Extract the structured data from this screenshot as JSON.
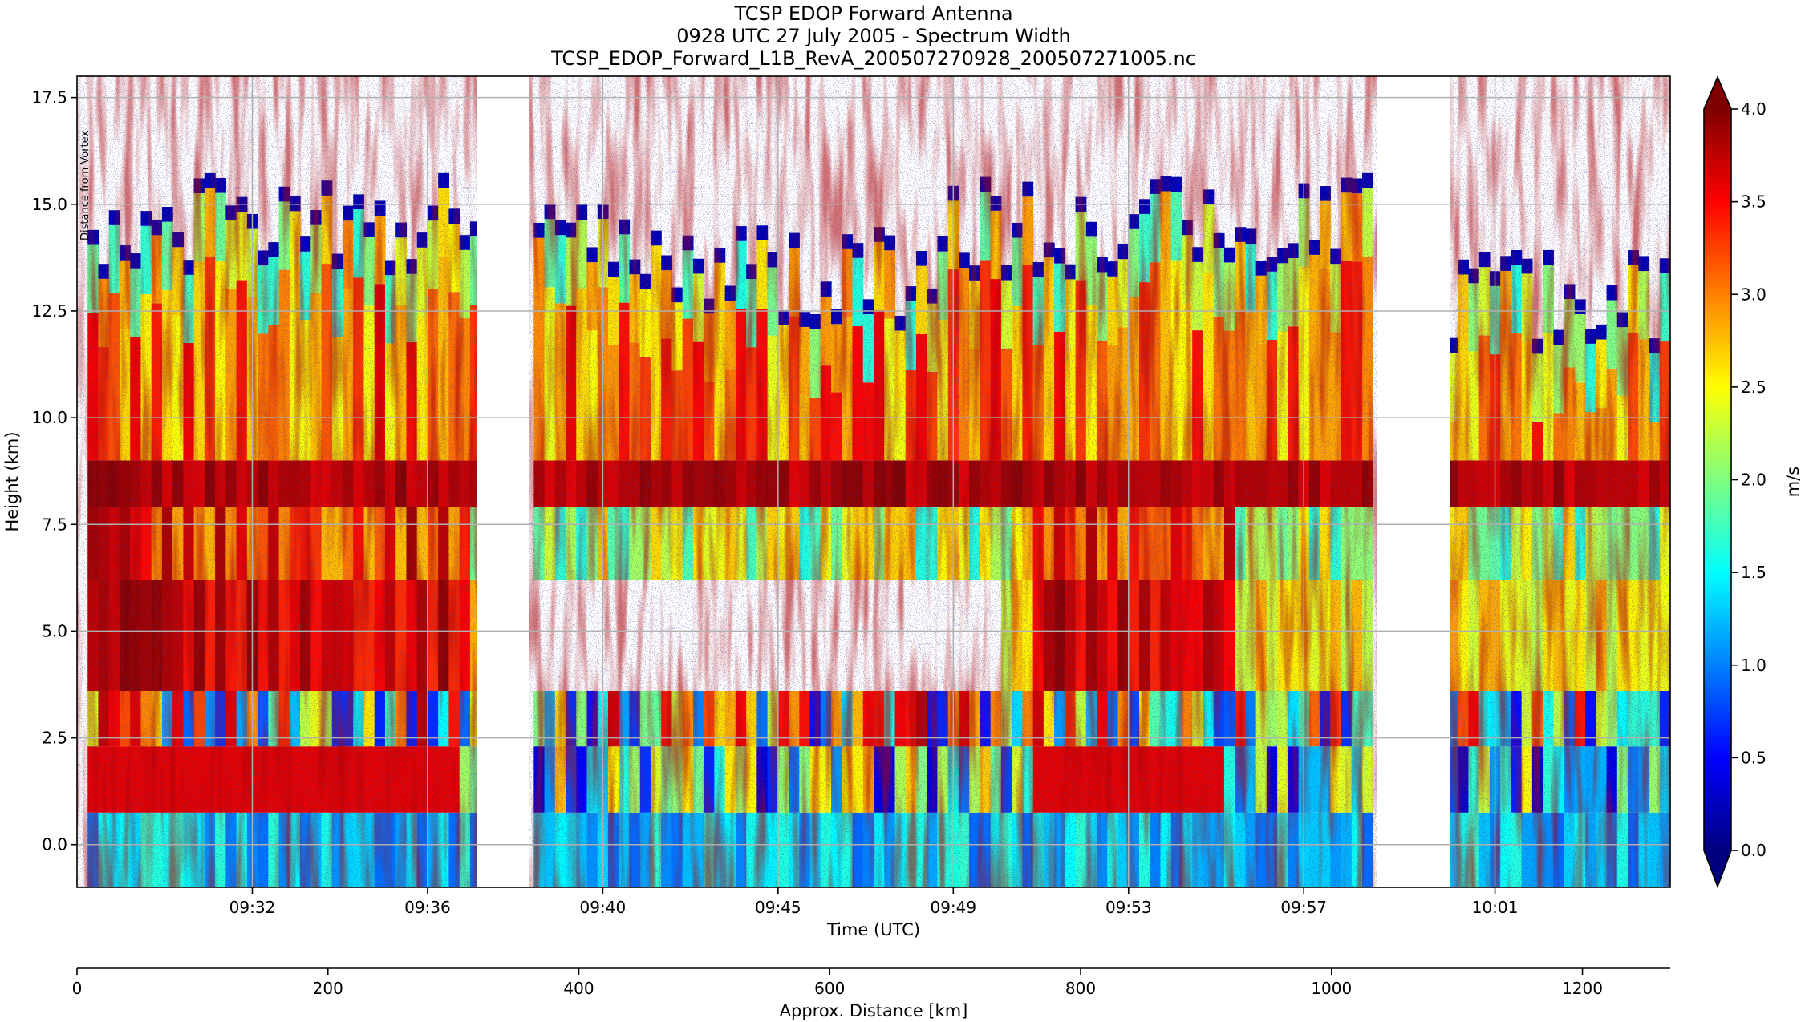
{
  "chart_data": {
    "type": "heatmap",
    "title": [
      "TCSP EDOP Forward Antenna",
      "0928 UTC 27 July 2005 - Spectrum Width",
      "TCSP_EDOP_Forward_L1B_RevA_200507270928_200507271005.nc"
    ],
    "xlabel": "Time (UTC)",
    "ylabel": "Height (km)",
    "x_ticks": [
      "09:32",
      "09:36",
      "09:40",
      "09:45",
      "09:49",
      "09:53",
      "09:57",
      "10:01"
    ],
    "x_tick_pos": [
      0.11,
      0.22,
      0.33,
      0.44,
      0.55,
      0.66,
      0.77,
      0.89
    ],
    "x_range": [
      "09:28",
      "10:05"
    ],
    "y_ticks": [
      0.0,
      2.5,
      5.0,
      7.5,
      10.0,
      12.5,
      15.0,
      17.5
    ],
    "ylim": [
      -1.0,
      18.0
    ],
    "grid": true,
    "annotation": "Distance from Vortex",
    "data_gaps": [
      [
        0.251,
        0.284
      ],
      [
        0.816,
        0.862
      ]
    ],
    "colorbar": {
      "label": "m/s",
      "ticks": [
        0.0,
        0.5,
        1.0,
        1.5,
        2.0,
        2.5,
        3.0,
        3.5,
        4.0
      ],
      "range": [
        0.0,
        4.0
      ],
      "extend": "both",
      "colormap": "jet",
      "colors": [
        "#00007f",
        "#0000ff",
        "#0080ff",
        "#00ffff",
        "#80ff80",
        "#ffff00",
        "#ff8000",
        "#ff0000",
        "#7f0000"
      ]
    },
    "distance_axis": {
      "label": "Approx. Distance [km]",
      "ticks": [
        0,
        200,
        400,
        600,
        800,
        1000,
        1200
      ],
      "range": [
        0,
        1270
      ]
    },
    "features": {
      "echo_top_km": 15.0,
      "bright_band_km": 8.5,
      "surface_band_km": 0.0,
      "low_band_km": 3.0,
      "max_width_ms": 4.0
    }
  }
}
